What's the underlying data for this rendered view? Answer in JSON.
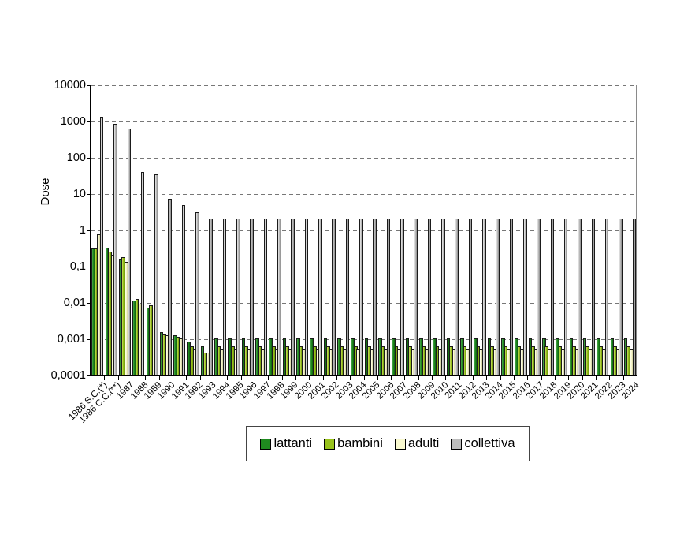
{
  "figure": {
    "ylabel": "Dose"
  },
  "y_axis": {
    "tick_labels": [
      "10000",
      "1000",
      "100",
      "10",
      "1",
      "0,1",
      "0,01",
      "0,001",
      "0,0001"
    ]
  },
  "legend": {
    "position": "bottom"
  },
  "colors": {
    "lattanti": "#1f8a1f",
    "bambini": "#98c21c",
    "adulti": "#fafad0",
    "collettiva": "#bdbdbd",
    "gridline": "#777777",
    "axis": "#000000"
  },
  "chart_data": {
    "type": "bar",
    "title": "",
    "xlabel": "",
    "ylabel": "Dose",
    "y_scale": "log",
    "ylim": [
      0.0001,
      10000
    ],
    "grid": "horizontal-dashed",
    "legend_position": "bottom",
    "categories": [
      "1986 S.C.(*)",
      "1986 C.C.(**)",
      "1987",
      "1988",
      "1989",
      "1990",
      "1991",
      "1992",
      "1993",
      "1994",
      "1995",
      "1996",
      "1997",
      "1998",
      "1999",
      "2000",
      "2001",
      "2002",
      "2003",
      "2004",
      "2005",
      "2006",
      "2007",
      "2008",
      "2009",
      "2010",
      "2011",
      "2012",
      "2013",
      "2014",
      "2015",
      "2016",
      "2017",
      "2018",
      "2019",
      "2020",
      "2021",
      "2022",
      "2023",
      "2024"
    ],
    "series": [
      {
        "name": "lattanti",
        "color": "#1f8a1f",
        "values": [
          0.3,
          0.32,
          0.16,
          0.011,
          0.007,
          0.0015,
          0.0012,
          0.0008,
          0.0006,
          0.001,
          0.001,
          0.001,
          0.001,
          0.001,
          0.001,
          0.001,
          0.001,
          0.001,
          0.001,
          0.001,
          0.001,
          0.001,
          0.001,
          0.001,
          0.001,
          0.001,
          0.001,
          0.001,
          0.001,
          0.001,
          0.001,
          0.001,
          0.001,
          0.001,
          0.001,
          0.001,
          0.001,
          0.001,
          0.001,
          0.001
        ]
      },
      {
        "name": "bambini",
        "color": "#98c21c",
        "values": [
          0.3,
          0.25,
          0.17,
          0.012,
          0.008,
          0.0013,
          0.0011,
          0.0006,
          0.0004,
          0.0006,
          0.0006,
          0.0006,
          0.0006,
          0.0006,
          0.0006,
          0.0006,
          0.0006,
          0.0006,
          0.0006,
          0.0006,
          0.0006,
          0.0006,
          0.0006,
          0.0006,
          0.0006,
          0.0006,
          0.0006,
          0.0006,
          0.0006,
          0.0006,
          0.0006,
          0.0006,
          0.0006,
          0.0006,
          0.0006,
          0.0006,
          0.0006,
          0.0006,
          0.0006,
          0.0006
        ]
      },
      {
        "name": "adulti",
        "color": "#fafad0",
        "values": [
          0.75,
          0.2,
          0.13,
          0.009,
          0.007,
          0.0012,
          0.001,
          0.0005,
          0.0004,
          0.0005,
          0.0005,
          0.0005,
          0.0005,
          0.0005,
          0.0005,
          0.0005,
          0.0005,
          0.0005,
          0.0005,
          0.0005,
          0.0005,
          0.0005,
          0.0005,
          0.0005,
          0.0005,
          0.0005,
          0.0005,
          0.0005,
          0.0005,
          0.0005,
          0.0005,
          0.0005,
          0.0005,
          0.0005,
          0.0005,
          0.0005,
          0.0005,
          0.0005,
          0.0005,
          0.0005
        ]
      },
      {
        "name": "collettiva",
        "color": "#bdbdbd",
        "values": [
          1300,
          800,
          600,
          38,
          33,
          7,
          4.8,
          3,
          2,
          2,
          2,
          2,
          2,
          2,
          2,
          2,
          2,
          2,
          2,
          2,
          2,
          2,
          2,
          2,
          2,
          2,
          2,
          2,
          2,
          2,
          2,
          2,
          2,
          2,
          2,
          2,
          2,
          2,
          2,
          2
        ]
      }
    ]
  }
}
